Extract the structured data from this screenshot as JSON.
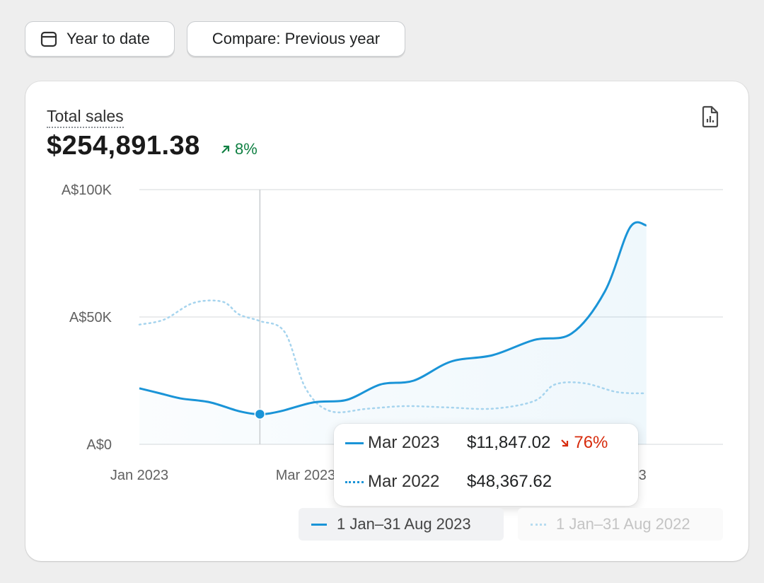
{
  "toolbar": {
    "date_range_label": "Year to date",
    "compare_label": "Compare: Previous year"
  },
  "card": {
    "title": "Total sales",
    "value": "$254,891.38",
    "change": "8%"
  },
  "chart_data": {
    "type": "line",
    "y_ticks": [
      "A$100K",
      "A$50K",
      "A$0"
    ],
    "x_ticks": [
      "Jan 2023",
      "Mar 2023",
      "2023"
    ],
    "ylim": [
      0,
      100000
    ],
    "grid": true,
    "series": [
      {
        "name": "1 Jan–31 Aug 2023",
        "style": "solid",
        "color": "#1a94d7",
        "points": [
          [
            0,
            22000
          ],
          [
            0.25,
            20000
          ],
          [
            0.5,
            18000
          ],
          [
            0.85,
            16500
          ],
          [
            1.2,
            13000
          ],
          [
            1.45,
            11800
          ],
          [
            1.7,
            13000
          ],
          [
            2.1,
            16500
          ],
          [
            2.5,
            17500
          ],
          [
            2.9,
            23500
          ],
          [
            3.3,
            25000
          ],
          [
            3.75,
            32500
          ],
          [
            4.25,
            35000
          ],
          [
            4.75,
            41000
          ],
          [
            5.2,
            43500
          ],
          [
            5.6,
            60000
          ],
          [
            5.9,
            85000
          ],
          [
            6.1,
            86000
          ]
        ]
      },
      {
        "name": "1 Jan–31 Aug 2022",
        "style": "dotted",
        "color": "#a6d4ee",
        "points": [
          [
            0,
            47000
          ],
          [
            0.3,
            49000
          ],
          [
            0.65,
            55500
          ],
          [
            1.0,
            56000
          ],
          [
            1.2,
            51000
          ],
          [
            1.45,
            48400
          ],
          [
            1.75,
            44000
          ],
          [
            2.0,
            22000
          ],
          [
            2.3,
            13000
          ],
          [
            2.75,
            14000
          ],
          [
            3.2,
            15000
          ],
          [
            3.7,
            14500
          ],
          [
            4.25,
            14000
          ],
          [
            4.75,
            17000
          ],
          [
            5.0,
            23500
          ],
          [
            5.35,
            24000
          ],
          [
            5.75,
            20500
          ],
          [
            6.1,
            20000
          ]
        ]
      }
    ],
    "highlight": {
      "x": 1.45,
      "series_index": 0,
      "value": 11847.02
    },
    "legend": [
      "1 Jan–31 Aug 2023",
      "1 Jan–31 Aug 2022"
    ],
    "legend_placement": "bottom-right"
  },
  "tooltip": {
    "current_label": "Mar 2023",
    "current_value": "$11,847.02",
    "change": "76%",
    "previous_label": "Mar 2022",
    "previous_value": "$48,367.62"
  },
  "colors": {
    "accent": "#1a94d7",
    "positive": "#108043",
    "negative": "#d72c0d"
  }
}
